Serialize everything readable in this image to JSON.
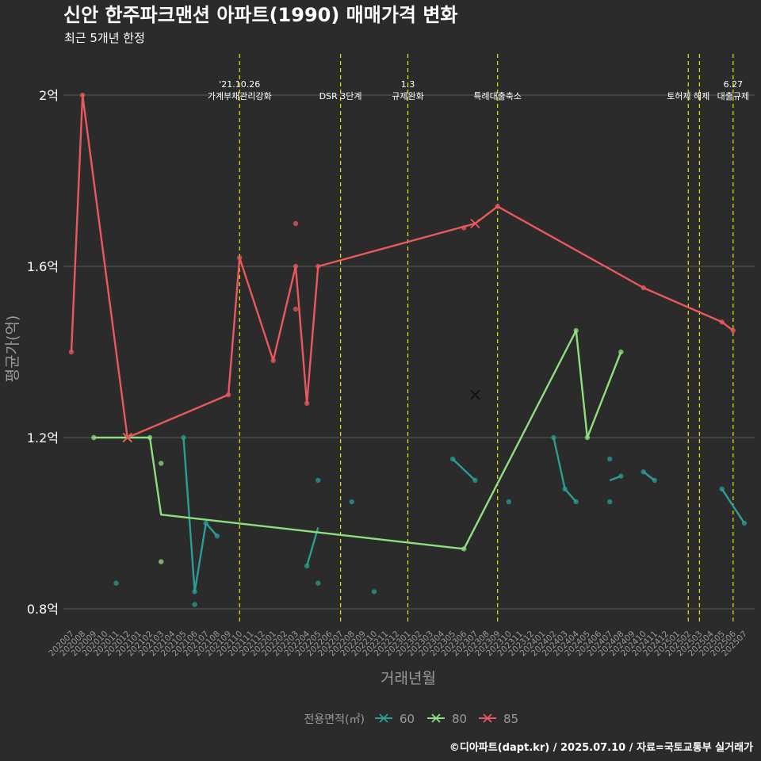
{
  "title": "신안 한주파크맨션 아파트(1990) 매매가격 변화",
  "subtitle": "최근 5개년 한정",
  "caption": "©디아파트(dapt.kr) / 2025.07.10 / 자료=국토교통부 실거래가",
  "colors": {
    "background": "#2b2b2b",
    "grid": "#5a5a5a",
    "event_line": "#e8e800",
    "s60": "#2a9d96",
    "s80": "#8ee07e",
    "s85": "#e8585c",
    "text": "#ffffff",
    "muted": "#9a9a9a"
  },
  "chart_data": {
    "type": "line",
    "xlabel": "거래년월",
    "ylabel": "평균가(억)",
    "ylim": [
      0.765,
      2.1
    ],
    "y_ticks": [
      {
        "value": 0.8,
        "label": "0.8억"
      },
      {
        "value": 1.2,
        "label": "1.2억"
      },
      {
        "value": 1.6,
        "label": "1.6억"
      },
      {
        "value": 2.0,
        "label": "2억"
      }
    ],
    "categories": [
      "202007",
      "202008",
      "202009",
      "202010",
      "202011",
      "202012",
      "202101",
      "202102",
      "202103",
      "202104",
      "202105",
      "202106",
      "202107",
      "202108",
      "202109",
      "202110",
      "202111",
      "202112",
      "202201",
      "202202",
      "202203",
      "202204",
      "202205",
      "202206",
      "202207",
      "202208",
      "202209",
      "202210",
      "202211",
      "202212",
      "202301",
      "202302",
      "202303",
      "202304",
      "202305",
      "202306",
      "202307",
      "202308",
      "202309",
      "202310",
      "202311",
      "202312",
      "202401",
      "202402",
      "202403",
      "202404",
      "202405",
      "202406",
      "202407",
      "202408",
      "202409",
      "202410",
      "202411",
      "202412",
      "202501",
      "202502",
      "202503",
      "202504",
      "202505",
      "202506",
      "202507"
    ],
    "legend_title": "전용면적(㎡)",
    "legend_position": "bottom",
    "series": [
      {
        "name": "60",
        "color_key": "s60",
        "lines": [
          [
            [
              "202105",
              1.2
            ],
            [
              "202106",
              0.84
            ],
            [
              "202107",
              1.0
            ],
            [
              "202108",
              0.97
            ]
          ],
          [
            [
              "202204",
              0.9
            ],
            [
              "202205",
              0.99
            ]
          ],
          [
            [
              "202305",
              1.15
            ],
            [
              "202307",
              1.1
            ]
          ],
          [
            [
              "202402",
              1.2
            ],
            [
              "202403",
              1.08
            ],
            [
              "202404",
              1.05
            ]
          ],
          [
            [
              "202407",
              1.1
            ],
            [
              "202408",
              1.11
            ]
          ],
          [
            [
              "202410",
              1.12
            ],
            [
              "202411",
              1.1
            ]
          ],
          [
            [
              "202505",
              1.08
            ],
            [
              "202507",
              1.0
            ]
          ]
        ],
        "points": [
          [
            "202011",
            0.86
          ],
          [
            "202105",
            1.2
          ],
          [
            "202106",
            0.84
          ],
          [
            "202106",
            0.81
          ],
          [
            "202107",
            1.0
          ],
          [
            "202108",
            0.97
          ],
          [
            "202204",
            0.9
          ],
          [
            "202205",
            0.86
          ],
          [
            "202205",
            1.1
          ],
          [
            "202208",
            1.05
          ],
          [
            "202210",
            0.84
          ],
          [
            "202305",
            1.15
          ],
          [
            "202307",
            1.1
          ],
          [
            "202310",
            1.05
          ],
          [
            "202402",
            1.2
          ],
          [
            "202403",
            1.08
          ],
          [
            "202404",
            1.05
          ],
          [
            "202407",
            1.15
          ],
          [
            "202407",
            1.05
          ],
          [
            "202408",
            1.11
          ],
          [
            "202410",
            1.12
          ],
          [
            "202411",
            1.1
          ],
          [
            "202505",
            1.08
          ],
          [
            "202507",
            1.0
          ]
        ],
        "marker_x": [
          [
            "202307",
            1.3
          ]
        ]
      },
      {
        "name": "80",
        "color_key": "s80",
        "lines": [
          [
            [
              "202009",
              1.2
            ],
            [
              "202012",
              1.2
            ],
            [
              "202102",
              1.2
            ],
            [
              "202103",
              1.02
            ],
            [
              "202306",
              0.94
            ],
            [
              "202404",
              1.45
            ],
            [
              "202405",
              1.2
            ],
            [
              "202408",
              1.4
            ]
          ]
        ],
        "points": [
          [
            "202009",
            1.2
          ],
          [
            "202102",
            1.2
          ],
          [
            "202103",
            1.14
          ],
          [
            "202103",
            0.91
          ],
          [
            "202306",
            0.94
          ],
          [
            "202404",
            1.45
          ],
          [
            "202405",
            1.2
          ],
          [
            "202408",
            1.4
          ]
        ],
        "marker_x": [
          [
            "202012",
            1.2
          ]
        ]
      },
      {
        "name": "85",
        "color_key": "s85",
        "lines": [
          [
            [
              "202007",
              1.4
            ],
            [
              "202008",
              2.0
            ],
            [
              "202012",
              1.2
            ],
            [
              "202109",
              1.3
            ],
            [
              "202110",
              1.62
            ],
            [
              "202201",
              1.38
            ],
            [
              "202203",
              1.6
            ],
            [
              "202204",
              1.28
            ],
            [
              "202205",
              1.6
            ],
            [
              "202307",
              1.7
            ],
            [
              "202309",
              1.74
            ],
            [
              "202410",
              1.55
            ],
            [
              "202505",
              1.47
            ],
            [
              "202506",
              1.45
            ]
          ]
        ],
        "points": [
          [
            "202007",
            1.4
          ],
          [
            "202008",
            2.0
          ],
          [
            "202109",
            1.3
          ],
          [
            "202110",
            1.62
          ],
          [
            "202201",
            1.38
          ],
          [
            "202203",
            1.7
          ],
          [
            "202203",
            1.5
          ],
          [
            "202203",
            1.6
          ],
          [
            "202204",
            1.28
          ],
          [
            "202205",
            1.6
          ],
          [
            "202306",
            1.69
          ],
          [
            "202309",
            1.74
          ],
          [
            "202410",
            1.55
          ],
          [
            "202505",
            1.47
          ],
          [
            "202506",
            1.45
          ]
        ],
        "marker_x": [
          [
            "202012",
            1.2
          ],
          [
            "202307",
            1.7
          ]
        ]
      }
    ],
    "events": [
      {
        "x": "202110",
        "lines": [
          "'21.10.26",
          "가계부채관리강화"
        ]
      },
      {
        "x": "202207",
        "lines": [
          "DSR 3단계"
        ]
      },
      {
        "x": "202301",
        "lines": [
          "1.3",
          "규제완화"
        ]
      },
      {
        "x": "202309",
        "lines": [
          "특례대출축소"
        ]
      },
      {
        "x": "202502",
        "lines": [
          "토허제 해제"
        ]
      },
      {
        "x": "202503",
        "lines": []
      },
      {
        "x": "202506",
        "lines": [
          "6.27",
          "대출규제"
        ]
      }
    ]
  }
}
